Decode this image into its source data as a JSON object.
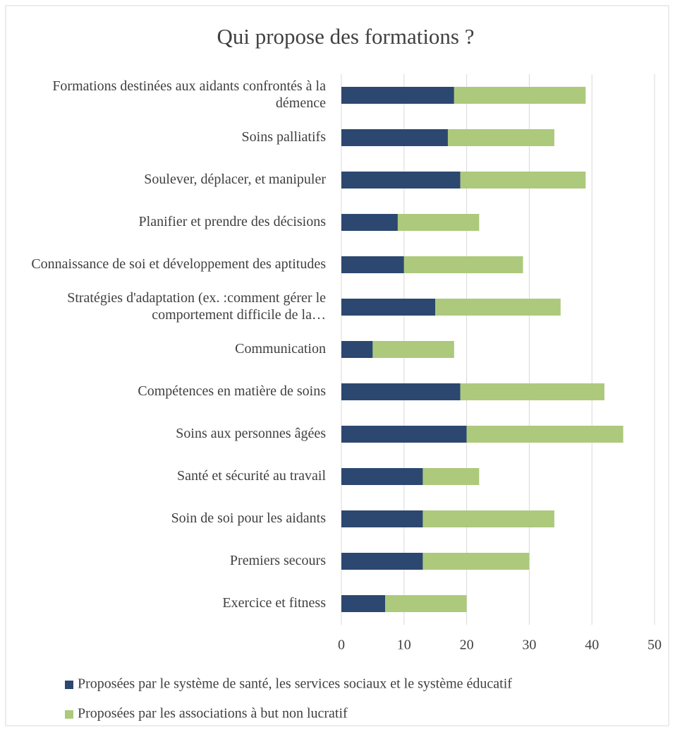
{
  "chart_data": {
    "type": "stacked-bar-horizontal",
    "title": "Qui propose des formations ?",
    "categories": [
      "Formations destinées aux aidants confrontés à la démence",
      "Soins palliatifs",
      "Soulever, déplacer, et manipuler",
      "Planifier et prendre des décisions",
      "Connaissance de soi et développement des aptitudes",
      "Stratégies d'adaptation (ex. :comment gérer le comportement difficile de la…",
      "Communication",
      "Compétences en matière de soins",
      "Soins aux personnes âgées",
      "Santé et sécurité au travail",
      "Soin de soi pour les aidants",
      "Premiers secours",
      "Exercice et fitness"
    ],
    "series": [
      {
        "name": "Proposées par le système de santé, les services sociaux et le système éducatif",
        "color": "#2c4770",
        "values": [
          18,
          17,
          19,
          9,
          10,
          15,
          5,
          19,
          20,
          13,
          13,
          13,
          7
        ]
      },
      {
        "name": "Proposées par les associations à but non lucratif",
        "color": "#adc97c",
        "values": [
          21,
          17,
          20,
          13,
          19,
          20,
          13,
          23,
          25,
          9,
          21,
          17,
          13
        ]
      }
    ],
    "xlim": [
      0,
      50
    ],
    "xticks": [
      0,
      10,
      20,
      30,
      40,
      50
    ],
    "grid": true,
    "legend": "bottom"
  }
}
